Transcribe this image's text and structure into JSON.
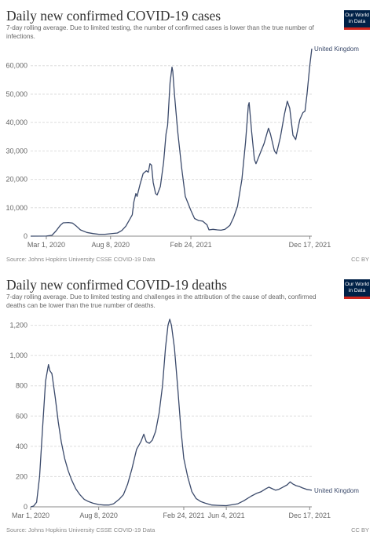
{
  "brand": {
    "logo_line1": "Our World",
    "logo_line2": "in Data",
    "navy": "#002147",
    "red": "#ce261e"
  },
  "line_color": "#3b4a6b",
  "chart_data": [
    {
      "type": "line",
      "title": "Daily new confirmed COVID-19 cases",
      "subtitle": "7-day rolling average. Due to limited testing, the number of confirmed cases is lower than the true number of infections.",
      "source": "Source: Johns Hopkins University CSSE COVID-19 Data",
      "license": "CC BY",
      "xlabel": "",
      "ylabel": "",
      "x_tick_labels": [
        "Mar 1, 2020",
        "Aug 8, 2020",
        "Feb 24, 2021",
        "Dec 17, 2021"
      ],
      "y_tick_labels": [
        "0",
        "10,000",
        "20,000",
        "30,000",
        "40,000",
        "50,000",
        "60,000"
      ],
      "ylim": [
        0,
        66000
      ],
      "xlim": [
        "2020-01-22",
        "2021-12-22"
      ],
      "grid": true,
      "series": [
        {
          "name": "United Kingdom",
          "points": [
            [
              "2020-01-22",
              0
            ],
            [
              "2020-03-01",
              20
            ],
            [
              "2020-03-15",
              300
            ],
            [
              "2020-03-25",
              1800
            ],
            [
              "2020-04-05",
              3800
            ],
            [
              "2020-04-12",
              4700
            ],
            [
              "2020-04-25",
              4800
            ],
            [
              "2020-05-05",
              4600
            ],
            [
              "2020-05-15",
              3500
            ],
            [
              "2020-05-25",
              2200
            ],
            [
              "2020-06-10",
              1300
            ],
            [
              "2020-06-25",
              900
            ],
            [
              "2020-07-10",
              650
            ],
            [
              "2020-07-25",
              650
            ],
            [
              "2020-08-08",
              850
            ],
            [
              "2020-08-25",
              1100
            ],
            [
              "2020-09-05",
              2000
            ],
            [
              "2020-09-15",
              3500
            ],
            [
              "2020-09-25",
              6000
            ],
            [
              "2020-10-01",
              7500
            ],
            [
              "2020-10-05",
              12000
            ],
            [
              "2020-10-10",
              15000
            ],
            [
              "2020-10-13",
              14000
            ],
            [
              "2020-10-20",
              18000
            ],
            [
              "2020-10-28",
              22000
            ],
            [
              "2020-11-05",
              23000
            ],
            [
              "2020-11-10",
              22500
            ],
            [
              "2020-11-14",
              25500
            ],
            [
              "2020-11-18",
              25000
            ],
            [
              "2020-11-22",
              19000
            ],
            [
              "2020-11-28",
              15000
            ],
            [
              "2020-12-02",
              14500
            ],
            [
              "2020-12-10",
              17500
            ],
            [
              "2020-12-18",
              26000
            ],
            [
              "2020-12-24",
              36000
            ],
            [
              "2020-12-28",
              39000
            ],
            [
              "2021-01-03",
              54000
            ],
            [
              "2021-01-08",
              59500
            ],
            [
              "2021-01-10",
              58000
            ],
            [
              "2021-01-14",
              50000
            ],
            [
              "2021-01-22",
              37000
            ],
            [
              "2021-02-01",
              24000
            ],
            [
              "2021-02-10",
              14000
            ],
            [
              "2021-02-24",
              9000
            ],
            [
              "2021-03-05",
              6200
            ],
            [
              "2021-03-15",
              5500
            ],
            [
              "2021-03-25",
              5300
            ],
            [
              "2021-04-05",
              4000
            ],
            [
              "2021-04-10",
              2200
            ],
            [
              "2021-04-20",
              2400
            ],
            [
              "2021-05-01",
              2200
            ],
            [
              "2021-05-10",
              2100
            ],
            [
              "2021-05-20",
              2400
            ],
            [
              "2021-06-01",
              3800
            ],
            [
              "2021-06-10",
              6500
            ],
            [
              "2021-06-20",
              10500
            ],
            [
              "2021-07-01",
              20000
            ],
            [
              "2021-07-10",
              33000
            ],
            [
              "2021-07-17",
              46000
            ],
            [
              "2021-07-19",
              47000
            ],
            [
              "2021-07-25",
              37000
            ],
            [
              "2021-08-01",
              27000
            ],
            [
              "2021-08-05",
              25500
            ],
            [
              "2021-08-15",
              29000
            ],
            [
              "2021-08-25",
              32500
            ],
            [
              "2021-09-05",
              38000
            ],
            [
              "2021-09-10",
              36000
            ],
            [
              "2021-09-20",
              30000
            ],
            [
              "2021-09-25",
              29000
            ],
            [
              "2021-10-05",
              35000
            ],
            [
              "2021-10-15",
              43000
            ],
            [
              "2021-10-22",
              47500
            ],
            [
              "2021-10-28",
              45000
            ],
            [
              "2021-11-05",
              35500
            ],
            [
              "2021-11-12",
              34000
            ],
            [
              "2021-11-22",
              41000
            ],
            [
              "2021-11-30",
              43500
            ],
            [
              "2021-12-05",
              44000
            ],
            [
              "2021-12-10",
              50000
            ],
            [
              "2021-12-17",
              60000
            ],
            [
              "2021-12-22",
              66000
            ]
          ]
        }
      ]
    },
    {
      "type": "line",
      "title": "Daily new confirmed COVID-19 deaths",
      "subtitle": "7-day rolling average. Due to limited testing and challenges in the attribution of the cause of death, confirmed deaths can be lower than the true number of deaths.",
      "source": "Source: Johns Hopkins University CSSE COVID-19 Data",
      "license": "CC BY",
      "xlabel": "",
      "ylabel": "",
      "x_tick_labels": [
        "Mar 1, 2020",
        "Aug 8, 2020",
        "Feb 24, 2021",
        "Jun 4, 2021",
        "Dec 17, 2021"
      ],
      "y_tick_labels": [
        "0",
        "200",
        "400",
        "600",
        "800",
        "1,000",
        "1,200"
      ],
      "ylim": [
        0,
        1260
      ],
      "xlim": [
        "2020-03-01",
        "2021-12-22"
      ],
      "grid": true,
      "series": [
        {
          "name": "United Kingdom",
          "points": [
            [
              "2020-03-01",
              0
            ],
            [
              "2020-03-08",
              5
            ],
            [
              "2020-03-15",
              30
            ],
            [
              "2020-03-22",
              200
            ],
            [
              "2020-03-29",
              520
            ],
            [
              "2020-04-05",
              830
            ],
            [
              "2020-04-12",
              940
            ],
            [
              "2020-04-15",
              900
            ],
            [
              "2020-04-20",
              880
            ],
            [
              "2020-04-28",
              720
            ],
            [
              "2020-05-05",
              560
            ],
            [
              "2020-05-12",
              430
            ],
            [
              "2020-05-20",
              320
            ],
            [
              "2020-05-28",
              240
            ],
            [
              "2020-06-05",
              180
            ],
            [
              "2020-06-15",
              120
            ],
            [
              "2020-06-25",
              80
            ],
            [
              "2020-07-05",
              50
            ],
            [
              "2020-07-15",
              35
            ],
            [
              "2020-07-25",
              25
            ],
            [
              "2020-08-08",
              15
            ],
            [
              "2020-08-20",
              12
            ],
            [
              "2020-09-01",
              12
            ],
            [
              "2020-09-12",
              20
            ],
            [
              "2020-09-25",
              50
            ],
            [
              "2020-10-05",
              80
            ],
            [
              "2020-10-15",
              150
            ],
            [
              "2020-10-25",
              250
            ],
            [
              "2020-11-05",
              380
            ],
            [
              "2020-11-15",
              430
            ],
            [
              "2020-11-22",
              480
            ],
            [
              "2020-11-28",
              430
            ],
            [
              "2020-12-05",
              420
            ],
            [
              "2020-12-12",
              440
            ],
            [
              "2020-12-20",
              500
            ],
            [
              "2020-12-28",
              620
            ],
            [
              "2021-01-05",
              800
            ],
            [
              "2021-01-12",
              1050
            ],
            [
              "2021-01-18",
              1200
            ],
            [
              "2021-01-22",
              1240
            ],
            [
              "2021-01-26",
              1200
            ],
            [
              "2021-02-02",
              1050
            ],
            [
              "2021-02-10",
              780
            ],
            [
              "2021-02-17",
              520
            ],
            [
              "2021-02-24",
              320
            ],
            [
              "2021-03-05",
              200
            ],
            [
              "2021-03-15",
              100
            ],
            [
              "2021-03-25",
              55
            ],
            [
              "2021-04-05",
              35
            ],
            [
              "2021-04-15",
              25
            ],
            [
              "2021-05-01",
              12
            ],
            [
              "2021-05-15",
              10
            ],
            [
              "2021-06-04",
              8
            ],
            [
              "2021-06-20",
              15
            ],
            [
              "2021-07-01",
              20
            ],
            [
              "2021-07-15",
              40
            ],
            [
              "2021-08-01",
              70
            ],
            [
              "2021-08-15",
              90
            ],
            [
              "2021-08-25",
              100
            ],
            [
              "2021-09-05",
              120
            ],
            [
              "2021-09-12",
              130
            ],
            [
              "2021-09-20",
              120
            ],
            [
              "2021-09-28",
              110
            ],
            [
              "2021-10-05",
              115
            ],
            [
              "2021-10-15",
              130
            ],
            [
              "2021-10-25",
              145
            ],
            [
              "2021-11-01",
              165
            ],
            [
              "2021-11-08",
              150
            ],
            [
              "2021-11-15",
              140
            ],
            [
              "2021-11-22",
              135
            ],
            [
              "2021-11-30",
              125
            ],
            [
              "2021-12-10",
              115
            ],
            [
              "2021-12-17",
              112
            ],
            [
              "2021-12-22",
              110
            ]
          ]
        }
      ]
    }
  ]
}
